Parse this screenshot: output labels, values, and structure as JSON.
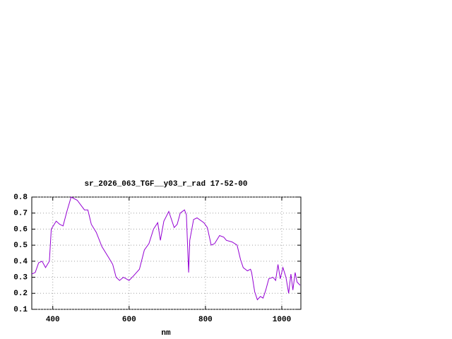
{
  "chart_data": {
    "type": "line",
    "title": "sr_2026_063_TGF__y03_r_rad 17-52-00",
    "x_label": "nm",
    "x": [
      345,
      354,
      363,
      372,
      381,
      391,
      396,
      409,
      418,
      427,
      437,
      448,
      464,
      483,
      492,
      501,
      514,
      529,
      547,
      557,
      566,
      575,
      585,
      600,
      612,
      627,
      640,
      652,
      664,
      675,
      682,
      691,
      704,
      718,
      726,
      734,
      745,
      750,
      756,
      759,
      769,
      778,
      796,
      805,
      815,
      824,
      837,
      848,
      855,
      870,
      883,
      892,
      899,
      910,
      918,
      921,
      929,
      936,
      944,
      951,
      958,
      966,
      977,
      984,
      990,
      996,
      1003,
      1011,
      1018,
      1024,
      1029,
      1035,
      1040,
      1048
    ],
    "series": [
      {
        "color": "#9400d3",
        "values": [
          0.32,
          0.33,
          0.39,
          0.4,
          0.36,
          0.4,
          0.6,
          0.65,
          0.63,
          0.62,
          0.71,
          0.8,
          0.78,
          0.72,
          0.72,
          0.63,
          0.58,
          0.49,
          0.42,
          0.38,
          0.3,
          0.28,
          0.3,
          0.28,
          0.31,
          0.35,
          0.47,
          0.51,
          0.6,
          0.64,
          0.53,
          0.65,
          0.71,
          0.61,
          0.63,
          0.7,
          0.72,
          0.69,
          0.33,
          0.53,
          0.66,
          0.67,
          0.64,
          0.61,
          0.5,
          0.51,
          0.56,
          0.55,
          0.53,
          0.52,
          0.5,
          0.41,
          0.36,
          0.34,
          0.35,
          0.33,
          0.21,
          0.16,
          0.18,
          0.17,
          0.22,
          0.29,
          0.3,
          0.28,
          0.38,
          0.29,
          0.36,
          0.3,
          0.2,
          0.32,
          0.22,
          0.33,
          0.27,
          0.25
        ]
      }
    ],
    "xlim": [
      345,
      1050
    ],
    "ylim": [
      0.1,
      0.8
    ],
    "xticks": [
      400,
      600,
      800,
      1000
    ],
    "yticks": [
      0.1,
      0.2,
      0.3,
      0.4,
      0.5,
      0.6,
      0.7,
      0.8
    ],
    "grid": true
  }
}
